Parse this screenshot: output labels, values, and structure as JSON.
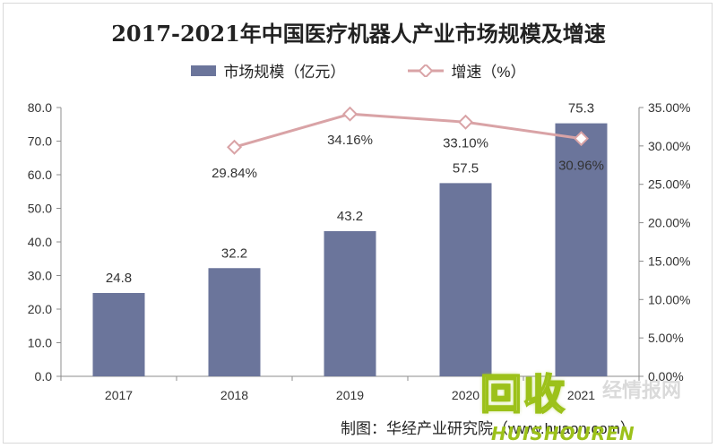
{
  "chart_data": {
    "type": "bar+line",
    "title": "2017-2021年中国医疗机器人产业市场规模及增速",
    "categories": [
      "2017",
      "2018",
      "2019",
      "2020",
      "2021"
    ],
    "series": [
      {
        "name": "市场规模（亿元）",
        "type": "bar",
        "axis": "left",
        "color": "#6b759b",
        "values": [
          24.8,
          32.2,
          43.2,
          57.5,
          75.3
        ],
        "labels": [
          "24.8",
          "32.2",
          "43.2",
          "57.5",
          "75.3"
        ]
      },
      {
        "name": "增速（%）",
        "type": "line",
        "axis": "right",
        "color": "#d9a3a6",
        "values": [
          null,
          29.84,
          34.16,
          33.1,
          30.96
        ],
        "labels": [
          "",
          "29.84%",
          "34.16%",
          "33.10%",
          "30.96%"
        ]
      }
    ],
    "y_left": {
      "min": 0,
      "max": 80,
      "step": 10,
      "ticks": [
        "0.0",
        "10.0",
        "20.0",
        "30.0",
        "40.0",
        "50.0",
        "60.0",
        "70.0",
        "80.0"
      ]
    },
    "y_right": {
      "min": 0,
      "max": 35,
      "step": 5,
      "ticks": [
        "0.00%",
        "5.00%",
        "10.00%",
        "15.00%",
        "20.00%",
        "25.00%",
        "30.00%",
        "35.00%"
      ]
    },
    "grid": false,
    "legend": "top"
  },
  "source": "制图：华经产业研究院（www.huaon.com）",
  "watermark": {
    "main": "回收",
    "side": "经情报网",
    "sub": "HUISHOUREN"
  }
}
